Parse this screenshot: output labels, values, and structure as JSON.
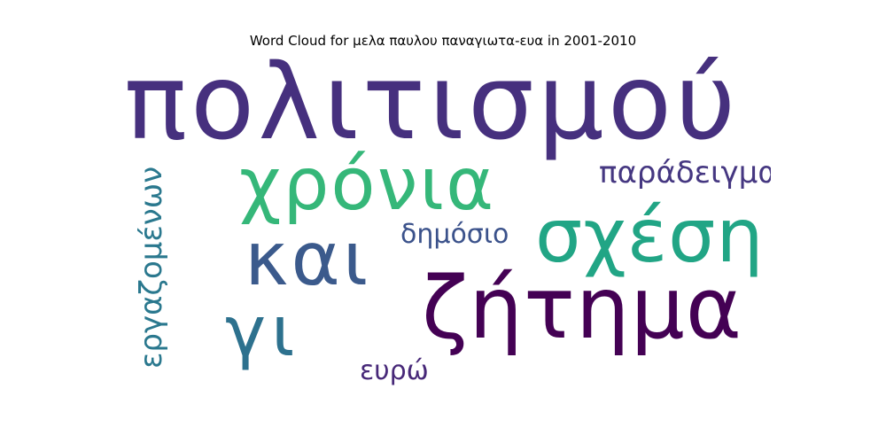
{
  "title": "Word Cloud for μελα παυλου παναγιωτα-ευα in 2001-2010",
  "words": [
    {
      "text": "πολιτισμού",
      "color": "#46307e",
      "size": 118,
      "rotate": 0
    },
    {
      "text": "χρόνια",
      "color": "#35b779",
      "size": 82,
      "rotate": 0
    },
    {
      "text": "σχέση",
      "color": "#21a585",
      "size": 84,
      "rotate": 0
    },
    {
      "text": "ζήτημα",
      "color": "#440154",
      "size": 96,
      "rotate": 0
    },
    {
      "text": "και",
      "color": "#3b5a8c",
      "size": 84,
      "rotate": 0
    },
    {
      "text": "γι",
      "color": "#2d718e",
      "size": 78,
      "rotate": 0
    },
    {
      "text": "παράδειγμα",
      "color": "#453781",
      "size": 34,
      "rotate": 0
    },
    {
      "text": "δημόσιο",
      "color": "#3b528b",
      "size": 30,
      "rotate": 0
    },
    {
      "text": "εργαζομένων",
      "color": "#2a788e",
      "size": 34,
      "rotate": -90
    },
    {
      "text": "ευρώ",
      "color": "#472878",
      "size": 30,
      "rotate": 0
    }
  ]
}
